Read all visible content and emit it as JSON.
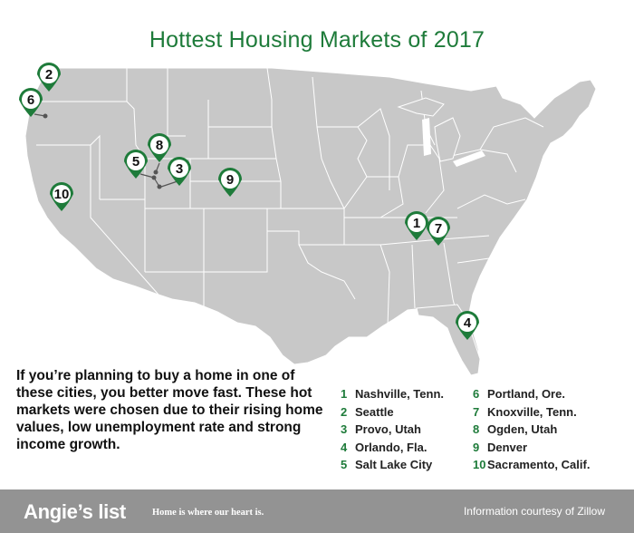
{
  "title": "Hottest Housing Markets of 2017",
  "blurb": "If you’re planning to buy a home in one of these cities, you better move fast. These hot markets were chosen due to their rising home values, low unemployment rate and strong income growth.",
  "colors": {
    "accent": "#1e7b3a",
    "map_fill": "#c8c8c8",
    "footer_bg": "#939393"
  },
  "markets": [
    {
      "rank": "1",
      "city": "Nashville, Tenn."
    },
    {
      "rank": "2",
      "city": "Seattle"
    },
    {
      "rank": "3",
      "city": "Provo, Utah"
    },
    {
      "rank": "4",
      "city": "Orlando, Fla."
    },
    {
      "rank": "5",
      "city": "Salt Lake City"
    },
    {
      "rank": "6",
      "city": "Portland, Ore."
    },
    {
      "rank": "7",
      "city": "Knoxville, Tenn."
    },
    {
      "rank": "8",
      "city": "Ogden, Utah"
    },
    {
      "rank": "9",
      "city": "Denver"
    },
    {
      "rank": "10",
      "city": "Sacramento, Calif."
    }
  ],
  "pins": [
    {
      "label": "1"
    },
    {
      "label": "2"
    },
    {
      "label": "3"
    },
    {
      "label": "4"
    },
    {
      "label": "5"
    },
    {
      "label": "6"
    },
    {
      "label": "7"
    },
    {
      "label": "8"
    },
    {
      "label": "9"
    },
    {
      "label": "10"
    }
  ],
  "footer": {
    "brand": "Angie’s list",
    "tagline": "Home is where our heart is.",
    "credit": "Information courtesy of Zillow"
  }
}
